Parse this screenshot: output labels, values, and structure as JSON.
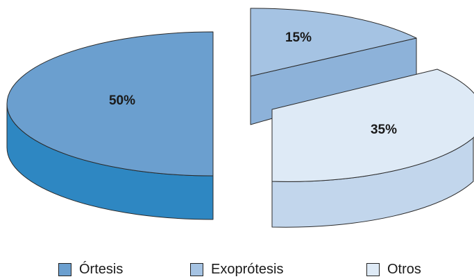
{
  "chart_data": {
    "type": "pie",
    "style": "3d-exploded",
    "categories": [
      "Órtesis",
      "Exoprótesis",
      "Otros"
    ],
    "values": [
      50,
      15,
      35
    ],
    "labels": [
      "50%",
      "15%",
      "35%"
    ],
    "colors": {
      "Órtesis": {
        "top": "#6b9fcf",
        "side": "#2e87c2"
      },
      "Exoprótesis": {
        "top": "#a5c3e3",
        "side": "#8db2d9"
      },
      "Otros": {
        "top": "#deeaf6",
        "side": "#c2d6ec"
      }
    },
    "legend_position": "bottom"
  }
}
